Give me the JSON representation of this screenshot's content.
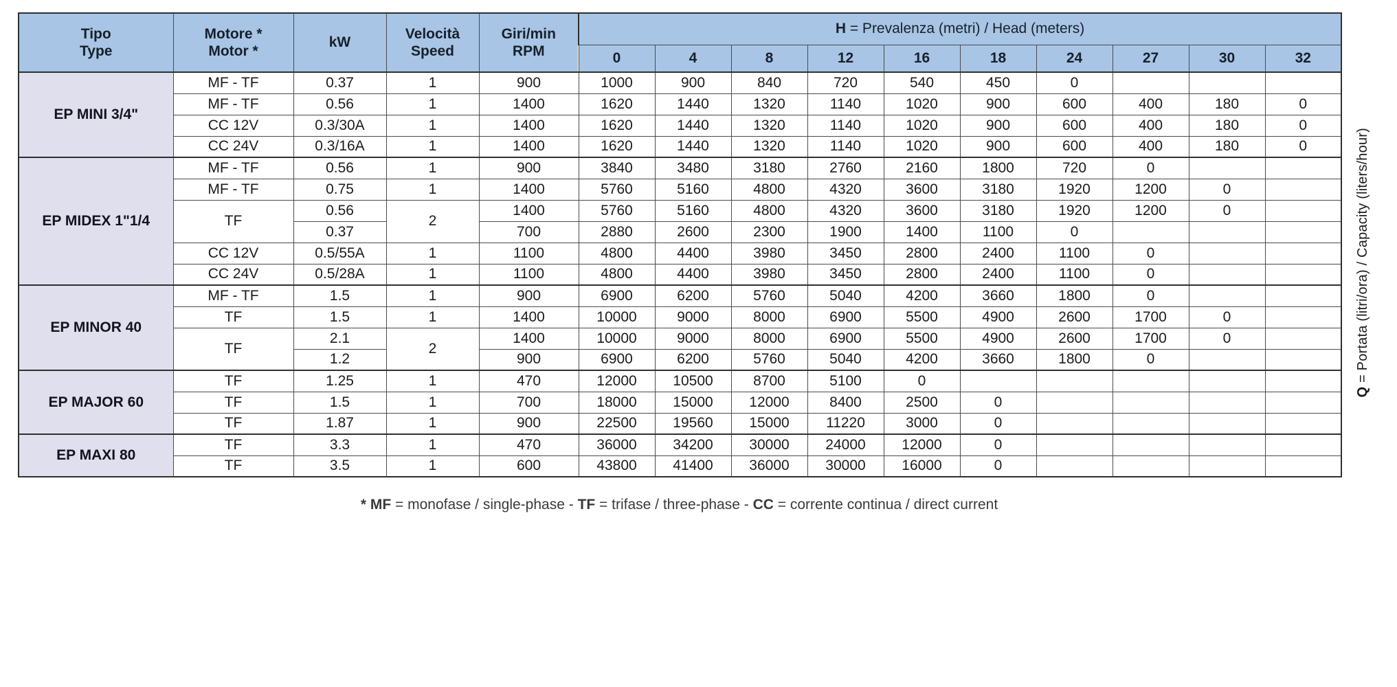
{
  "table": {
    "headers": {
      "tipo_line1": "Tipo",
      "tipo_line2": "Type",
      "motore_line1": "Motore *",
      "motore_line2": "Motor *",
      "kw": "kW",
      "velocita_line1": "Velocità",
      "velocita_line2": "Speed",
      "giri_line1": "Giri/min",
      "giri_line2": "RPM",
      "h_bold": "H",
      "h_rest": " = Prevalenza (metri) / Head (meters)",
      "h_values": [
        "0",
        "4",
        "8",
        "12",
        "16",
        "18",
        "24",
        "27",
        "30",
        "32"
      ]
    },
    "right_label": {
      "bold": "Q",
      "rest": " = Portata (litri/ora) / Capacity (liters/hour)"
    },
    "colors": {
      "header_bg": "#a8c5e5",
      "group_bg": "#dfdfee",
      "border": "#2f2f2f"
    },
    "groups": [
      {
        "name": "EP MINI 3/4\"",
        "rows": [
          {
            "motor": "MF - TF",
            "kw": "0.37",
            "speed": "1",
            "rpm": "900",
            "values": [
              "1000",
              "900",
              "840",
              "720",
              "540",
              "450",
              "0",
              "",
              "",
              ""
            ]
          },
          {
            "motor": "MF - TF",
            "kw": "0.56",
            "speed": "1",
            "rpm": "1400",
            "values": [
              "1620",
              "1440",
              "1320",
              "1140",
              "1020",
              "900",
              "600",
              "400",
              "180",
              "0"
            ]
          },
          {
            "motor": "CC 12V",
            "kw": "0.3/30A",
            "speed": "1",
            "rpm": "1400",
            "values": [
              "1620",
              "1440",
              "1320",
              "1140",
              "1020",
              "900",
              "600",
              "400",
              "180",
              "0"
            ]
          },
          {
            "motor": "CC 24V",
            "kw": "0.3/16A",
            "speed": "1",
            "rpm": "1400",
            "values": [
              "1620",
              "1440",
              "1320",
              "1140",
              "1020",
              "900",
              "600",
              "400",
              "180",
              "0"
            ]
          }
        ]
      },
      {
        "name": "EP MIDEX 1\"1/4",
        "rows": [
          {
            "motor": "MF - TF",
            "kw": "0.56",
            "speed": "1",
            "rpm": "900",
            "values": [
              "3840",
              "3480",
              "3180",
              "2760",
              "2160",
              "1800",
              "720",
              "0",
              "",
              ""
            ]
          },
          {
            "motor": "MF - TF",
            "kw": "0.75",
            "speed": "1",
            "rpm": "1400",
            "values": [
              "5760",
              "5160",
              "4800",
              "4320",
              "3600",
              "3180",
              "1920",
              "1200",
              "0",
              ""
            ]
          },
          {
            "motor": "TF",
            "motor_span": 2,
            "kw": "0.56",
            "speed": "2",
            "speed_span": 2,
            "rpm": "1400",
            "values": [
              "5760",
              "5160",
              "4800",
              "4320",
              "3600",
              "3180",
              "1920",
              "1200",
              "0",
              ""
            ]
          },
          {
            "motor": null,
            "kw": "0.37",
            "speed": null,
            "rpm": "700",
            "values": [
              "2880",
              "2600",
              "2300",
              "1900",
              "1400",
              "1100",
              "0",
              "",
              "",
              ""
            ]
          },
          {
            "motor": "CC 12V",
            "kw": "0.5/55A",
            "speed": "1",
            "rpm": "1100",
            "values": [
              "4800",
              "4400",
              "3980",
              "3450",
              "2800",
              "2400",
              "1100",
              "0",
              "",
              ""
            ]
          },
          {
            "motor": "CC 24V",
            "kw": "0.5/28A",
            "speed": "1",
            "rpm": "1100",
            "values": [
              "4800",
              "4400",
              "3980",
              "3450",
              "2800",
              "2400",
              "1100",
              "0",
              "",
              ""
            ]
          }
        ]
      },
      {
        "name": "EP MINOR 40",
        "rows": [
          {
            "motor": "MF - TF",
            "kw": "1.5",
            "speed": "1",
            "rpm": "900",
            "values": [
              "6900",
              "6200",
              "5760",
              "5040",
              "4200",
              "3660",
              "1800",
              "0",
              "",
              ""
            ]
          },
          {
            "motor": "TF",
            "kw": "1.5",
            "speed": "1",
            "rpm": "1400",
            "values": [
              "10000",
              "9000",
              "8000",
              "6900",
              "5500",
              "4900",
              "2600",
              "1700",
              "0",
              ""
            ]
          },
          {
            "motor": "TF",
            "motor_span": 2,
            "kw": "2.1",
            "speed": "2",
            "speed_span": 2,
            "rpm": "1400",
            "values": [
              "10000",
              "9000",
              "8000",
              "6900",
              "5500",
              "4900",
              "2600",
              "1700",
              "0",
              ""
            ]
          },
          {
            "motor": null,
            "kw": "1.2",
            "speed": null,
            "rpm": "900",
            "values": [
              "6900",
              "6200",
              "5760",
              "5040",
              "4200",
              "3660",
              "1800",
              "0",
              "",
              ""
            ]
          }
        ]
      },
      {
        "name": "EP MAJOR 60",
        "rows": [
          {
            "motor": "TF",
            "kw": "1.25",
            "speed": "1",
            "rpm": "470",
            "values": [
              "12000",
              "10500",
              "8700",
              "5100",
              "0",
              "",
              "",
              "",
              "",
              ""
            ]
          },
          {
            "motor": "TF",
            "kw": "1.5",
            "speed": "1",
            "rpm": "700",
            "values": [
              "18000",
              "15000",
              "12000",
              "8400",
              "2500",
              "0",
              "",
              "",
              "",
              ""
            ]
          },
          {
            "motor": "TF",
            "kw": "1.87",
            "speed": "1",
            "rpm": "900",
            "values": [
              "22500",
              "19560",
              "15000",
              "11220",
              "3000",
              "0",
              "",
              "",
              "",
              ""
            ]
          }
        ]
      },
      {
        "name": "EP MAXI 80",
        "rows": [
          {
            "motor": "TF",
            "kw": "3.3",
            "speed": "1",
            "rpm": "470",
            "values": [
              "36000",
              "34200",
              "30000",
              "24000",
              "12000",
              "0",
              "",
              "",
              "",
              ""
            ]
          },
          {
            "motor": "TF",
            "kw": "3.5",
            "speed": "1",
            "rpm": "600",
            "values": [
              "43800",
              "41400",
              "36000",
              "30000",
              "16000",
              "0",
              "",
              "",
              "",
              ""
            ]
          }
        ]
      }
    ],
    "footnote": {
      "p1": "* MF",
      "p2": " = monofase / single-phase - ",
      "p3": "TF",
      "p4": " = trifase / three-phase - ",
      "p5": "CC",
      "p6": " = corrente continua / direct current"
    }
  }
}
